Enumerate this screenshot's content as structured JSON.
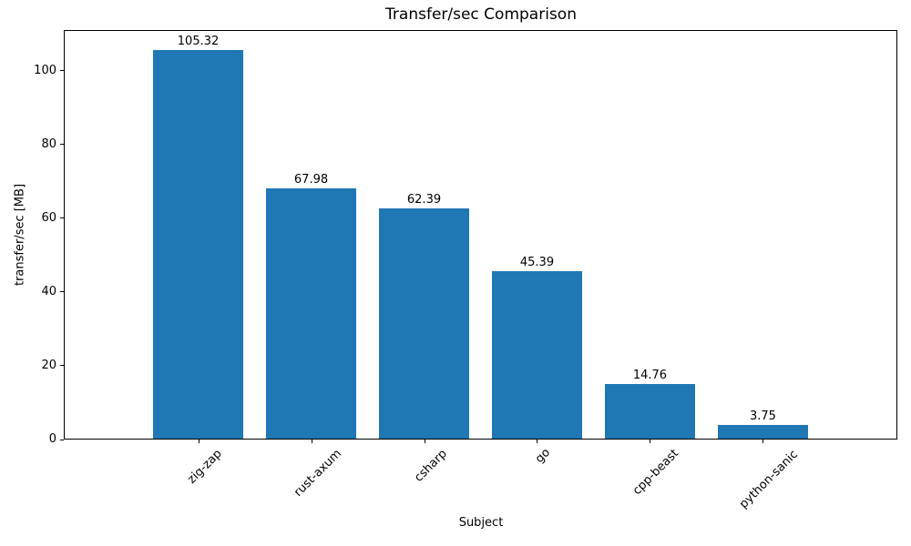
{
  "chart_data": {
    "type": "bar",
    "title": "Transfer/sec Comparison",
    "xlabel": "Subject",
    "ylabel": "transfer/sec [MB]",
    "categories": [
      "zig-zap",
      "rust-axum",
      "csharp",
      "go",
      "cpp-beast",
      "python-sanic"
    ],
    "values": [
      105.32,
      67.98,
      62.39,
      45.39,
      14.76,
      3.75
    ],
    "bar_value_labels": [
      "105.32",
      "67.98",
      "62.39",
      "45.39",
      "14.76",
      "3.75"
    ],
    "yticks": [
      0,
      20,
      40,
      60,
      80,
      100
    ],
    "ylim": [
      0,
      111.1
    ],
    "xtick_rotation_deg": 45,
    "bar_color": "#1f77b4",
    "axis_color": "#000000",
    "text_color": "#000000",
    "background": "#ffffff",
    "grid": false,
    "legend": "none"
  }
}
